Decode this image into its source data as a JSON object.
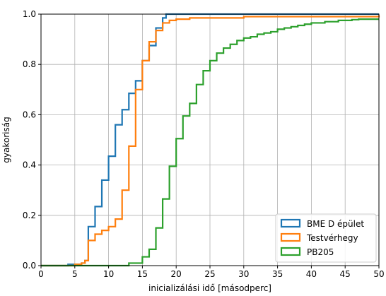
{
  "chart_data": {
    "type": "line",
    "step": true,
    "xlabel": "inicializálási idő [másodperc]",
    "ylabel": "gyakoriság",
    "xlim": [
      0,
      50
    ],
    "ylim": [
      0,
      1.0
    ],
    "xticks": [
      "0",
      "5",
      "10",
      "15",
      "20",
      "25",
      "30",
      "35",
      "40",
      "45",
      "50"
    ],
    "yticks": [
      "0.0",
      "0.2",
      "0.4",
      "0.6",
      "0.8",
      "1.0"
    ],
    "grid": true,
    "legend_position": "bottom-right",
    "series": [
      {
        "name": "BME D épület",
        "color": "#1f77b4",
        "x": [
          0,
          4,
          6,
          6.5,
          7,
          8,
          9,
          10,
          11,
          12,
          13,
          14,
          15,
          16,
          17,
          18,
          18.5,
          19,
          50
        ],
        "y": [
          0,
          0.005,
          0.01,
          0.02,
          0.155,
          0.235,
          0.34,
          0.435,
          0.56,
          0.62,
          0.685,
          0.735,
          0.815,
          0.875,
          0.945,
          0.985,
          1.0,
          1.0,
          1.0
        ]
      },
      {
        "name": "Testvérhegy",
        "color": "#ff7f0e",
        "x": [
          0,
          5,
          6,
          6.5,
          7,
          8,
          9,
          10,
          11,
          12,
          13,
          14,
          15,
          16,
          17,
          18,
          19,
          20,
          22,
          30,
          40,
          50
        ],
        "y": [
          0,
          0.005,
          0.01,
          0.02,
          0.1,
          0.125,
          0.14,
          0.155,
          0.185,
          0.3,
          0.475,
          0.7,
          0.815,
          0.89,
          0.935,
          0.965,
          0.975,
          0.98,
          0.985,
          0.99,
          0.99,
          0.995
        ]
      },
      {
        "name": "PB205",
        "color": "#2ca02c",
        "x": [
          0,
          13,
          15,
          16,
          17,
          18,
          19,
          20,
          21,
          22,
          23,
          24,
          25,
          26,
          27,
          28,
          29,
          30,
          31,
          32,
          33,
          34,
          35,
          36,
          37,
          38,
          39,
          40,
          41,
          42,
          43,
          44,
          45,
          46,
          47,
          48,
          49,
          50
        ],
        "y": [
          0,
          0.01,
          0.035,
          0.065,
          0.15,
          0.265,
          0.395,
          0.505,
          0.595,
          0.645,
          0.72,
          0.775,
          0.815,
          0.845,
          0.865,
          0.88,
          0.895,
          0.905,
          0.91,
          0.92,
          0.925,
          0.93,
          0.94,
          0.945,
          0.95,
          0.955,
          0.96,
          0.965,
          0.965,
          0.97,
          0.97,
          0.975,
          0.975,
          0.978,
          0.98,
          0.98,
          0.98,
          0.98
        ]
      }
    ]
  }
}
